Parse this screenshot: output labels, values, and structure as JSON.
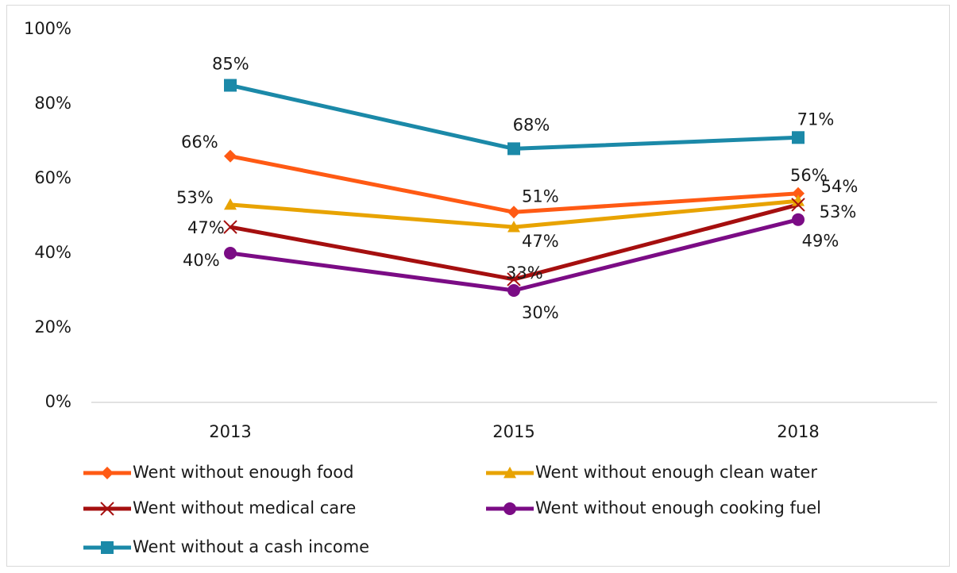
{
  "chart_data": {
    "type": "line",
    "categories": [
      "2013",
      "2015",
      "2018"
    ],
    "y_ticks": [
      "0%",
      "20%",
      "40%",
      "60%",
      "80%",
      "100%"
    ],
    "ylim": [
      0,
      100
    ],
    "grid": false,
    "legend_position": "bottom",
    "series": [
      {
        "name": "Went without enough food",
        "color": "#FF5A14",
        "marker": "diamond",
        "values": [
          66,
          51,
          56
        ],
        "labels": [
          "66%",
          "51%",
          "56%"
        ]
      },
      {
        "name": "Went without enough clean water",
        "color": "#E8A301",
        "marker": "triangle",
        "values": [
          53,
          47,
          54
        ],
        "labels": [
          "53%",
          "47%",
          "54%"
        ]
      },
      {
        "name": "Went without medical care",
        "color": "#A50F0F",
        "marker": "x",
        "values": [
          47,
          33,
          53
        ],
        "labels": [
          "47%",
          "33%",
          "53%"
        ]
      },
      {
        "name": "Went without enough cooking fuel",
        "color": "#7B0C85",
        "marker": "circle",
        "values": [
          40,
          30,
          49
        ],
        "labels": [
          "40%",
          "30%",
          "49%"
        ]
      },
      {
        "name": "Went without a cash income",
        "color": "#1B89A8",
        "marker": "square",
        "values": [
          85,
          68,
          71
        ],
        "labels": [
          "85%",
          "68%",
          "71%"
        ]
      }
    ]
  }
}
